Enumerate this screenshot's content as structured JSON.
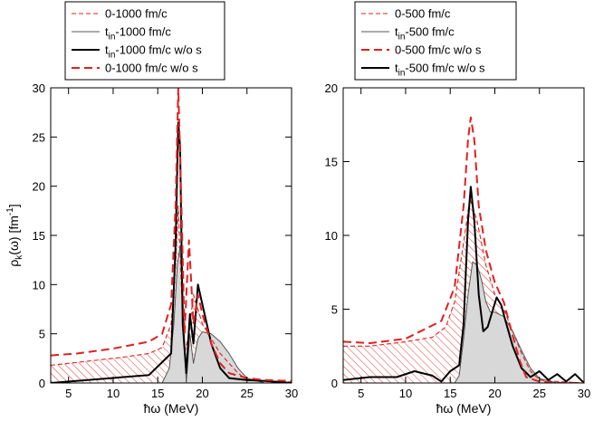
{
  "chart_data": [
    {
      "type": "line",
      "panel": "left",
      "xlabel": "ħω (MeV)",
      "ylabel": "ρk(ω) [fm-1]",
      "xlim": [
        3,
        30
      ],
      "ylim": [
        0,
        30
      ],
      "xticks": [
        5,
        10,
        15,
        20,
        25,
        30
      ],
      "yticks": [
        0,
        5,
        10,
        15,
        20,
        25,
        30
      ],
      "legend": [
        {
          "label": "0-1000 fm/c",
          "style": "red-dashed-thin"
        },
        {
          "label": "tin-1000 fm/c",
          "style": "black-solid-thin"
        },
        {
          "label": "tin-1000 fm/c w/o s",
          "style": "black-solid-thick"
        },
        {
          "label": "0-1000 fm/c w/o s",
          "style": "red-dashed-thick"
        }
      ],
      "series": [
        {
          "name": "0-1000 fm/c",
          "fill": "red-hatched",
          "x": [
            3,
            5,
            8,
            11,
            14,
            15.5,
            16.5,
            17,
            17.3,
            17.6,
            18,
            18.5,
            19,
            20,
            21,
            22,
            23,
            24,
            25,
            27,
            30
          ],
          "y": [
            1.8,
            2.0,
            2.3,
            2.6,
            3.0,
            3.6,
            6,
            12,
            18,
            11,
            3,
            5,
            9,
            6,
            4.5,
            3,
            2,
            1,
            0.3,
            0.2,
            0.1
          ]
        },
        {
          "name": "tin-1000 fm/c",
          "fill": "grey",
          "x": [
            3,
            14,
            15.5,
            16.3,
            16.8,
            17.2,
            17.5,
            17.8,
            18.2,
            18.6,
            19,
            19.5,
            20,
            21,
            22,
            23,
            24,
            25,
            27,
            30
          ],
          "y": [
            0,
            0,
            0,
            1.5,
            6,
            12,
            14,
            9,
            0,
            5,
            2,
            4.5,
            5.2,
            5,
            4.2,
            3,
            1.5,
            0.5,
            0,
            0
          ]
        },
        {
          "name": "tin-1000 fm/c w/o s",
          "x": [
            3,
            14,
            16.5,
            17,
            17.3,
            17.5,
            17.8,
            18.2,
            18.6,
            19,
            19.5,
            20,
            20.5,
            21,
            22,
            23,
            25,
            27,
            30
          ],
          "y": [
            0,
            0.8,
            3,
            14,
            26.5,
            24,
            6,
            1,
            7,
            4,
            10,
            8,
            6,
            4,
            1.5,
            0.5,
            0.3,
            0.2,
            0
          ]
        },
        {
          "name": "0-1000 fm/c w/o s",
          "x": [
            3,
            6,
            10,
            14,
            15.5,
            16.5,
            17,
            17.3,
            17.6,
            18,
            18.5,
            19,
            19.5,
            20,
            21,
            22,
            23,
            25,
            27,
            30
          ],
          "y": [
            2.8,
            3.0,
            3.5,
            4.2,
            5,
            8,
            18,
            30,
            20,
            5,
            14.5,
            6,
            9,
            7,
            4,
            2,
            1,
            0.5,
            0.3,
            0.2
          ]
        }
      ]
    },
    {
      "type": "line",
      "panel": "right",
      "xlabel": "ħω (MeV)",
      "xlim": [
        3,
        30
      ],
      "ylim": [
        0,
        20
      ],
      "xticks": [
        5,
        10,
        15,
        20,
        25,
        30
      ],
      "yticks": [
        0,
        5,
        10,
        15,
        20
      ],
      "legend": [
        {
          "label": "0-500 fm/c",
          "style": "red-dashed-thin"
        },
        {
          "label": "tin-500 fm/c",
          "style": "black-solid-thin"
        },
        {
          "label": "0-500 fm/c w/o s",
          "style": "red-dashed-thick"
        },
        {
          "label": "tin-500 fm/c w/o s",
          "style": "black-solid-thick"
        }
      ],
      "series": [
        {
          "name": "0-500 fm/c",
          "fill": "red-hatched",
          "x": [
            3,
            6,
            10,
            13,
            14.5,
            15.5,
            16.5,
            17.2,
            18,
            19,
            20,
            21,
            22,
            23,
            24,
            25,
            27,
            30
          ],
          "y": [
            2.5,
            2.5,
            2.8,
            3.1,
            3.8,
            5.5,
            9.5,
            12.5,
            11,
            8,
            6,
            5,
            3.5,
            2,
            0.8,
            0.2,
            0.1,
            0
          ]
        },
        {
          "name": "tin-500 fm/c",
          "fill": "grey",
          "x": [
            3,
            15.5,
            16,
            16.5,
            17,
            17.5,
            18,
            18.5,
            19,
            19.5,
            20,
            21,
            22,
            23,
            24,
            25,
            27,
            30
          ],
          "y": [
            0,
            0,
            0.5,
            3,
            6,
            8.2,
            8,
            7,
            5.5,
            4.8,
            4.8,
            4.5,
            3.5,
            2.2,
            1.0,
            0.3,
            0,
            0
          ]
        },
        {
          "name": "tin-500 fm/c w/o s",
          "x": [
            3,
            6,
            9,
            11,
            13,
            14,
            15,
            16,
            16.5,
            17,
            17.3,
            17.7,
            18.2,
            18.7,
            19.2,
            19.7,
            20.2,
            20.7,
            21.2,
            22,
            23,
            24,
            25,
            26,
            27,
            28,
            29,
            30
          ],
          "y": [
            0.2,
            0.4,
            0.4,
            0.8,
            0.5,
            0.1,
            0.8,
            1.2,
            4,
            11,
            13.3,
            11,
            6,
            3.5,
            3.8,
            4.8,
            5.8,
            5.3,
            4.2,
            2.5,
            1,
            0.4,
            0.8,
            0.2,
            0.6,
            0.1,
            0.6,
            0
          ]
        },
        {
          "name": "0-500 fm/c w/o s",
          "x": [
            3,
            6,
            10,
            14,
            15.5,
            16.5,
            17,
            17.3,
            17.7,
            18.2,
            19,
            20,
            21,
            22,
            22.8,
            23.5,
            25,
            27,
            30
          ],
          "y": [
            2.8,
            2.7,
            3.0,
            4.2,
            6.5,
            12,
            16.5,
            18,
            16.5,
            12,
            9,
            6.8,
            5.5,
            3.2,
            1.5,
            0.4,
            0.1,
            0,
            0
          ]
        }
      ]
    }
  ]
}
